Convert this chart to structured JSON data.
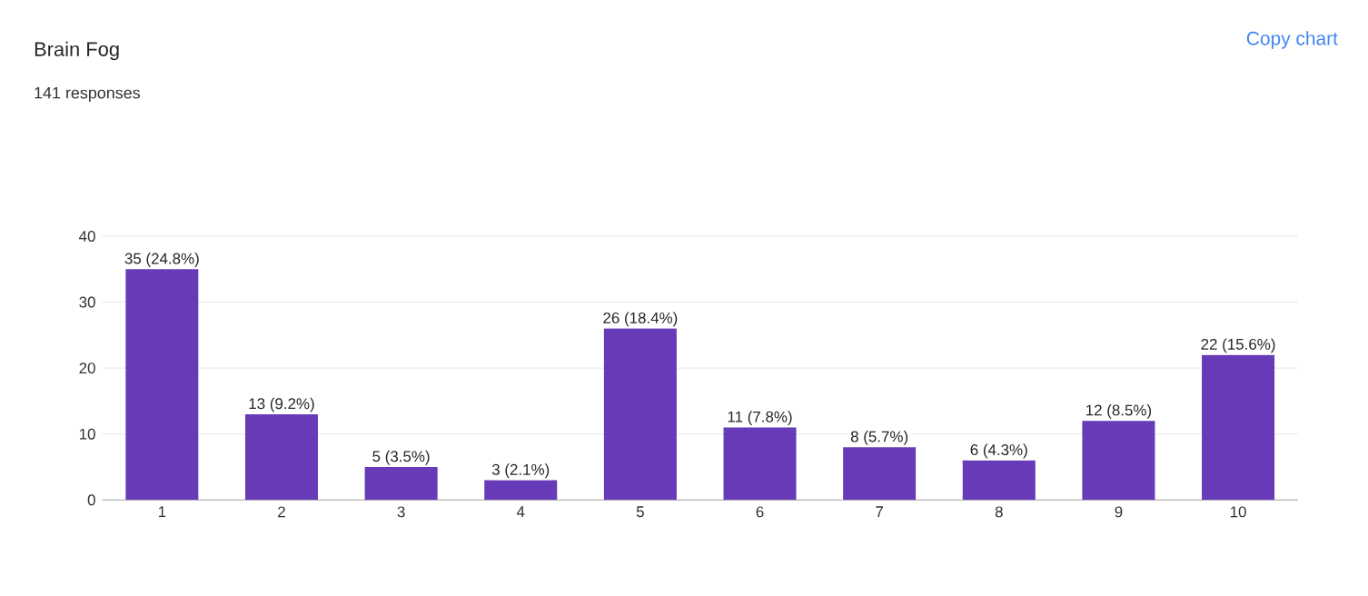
{
  "chart_data": {
    "type": "bar",
    "title": "Brain Fog",
    "subtitle": "141 responses",
    "annotations": [
      "Copy chart"
    ],
    "categories": [
      "1",
      "2",
      "3",
      "4",
      "5",
      "6",
      "7",
      "8",
      "9",
      "10"
    ],
    "values": [
      35,
      13,
      5,
      3,
      26,
      11,
      8,
      6,
      12,
      22
    ],
    "value_labels": [
      "35 (24.8%)",
      "13 (9.2%)",
      "5 (3.5%)",
      "3 (2.1%)",
      "26 (18.4%)",
      "11 (7.8%)",
      "8 (5.7%)",
      "6 (4.3%)",
      "12 (8.5%)",
      "22 (15.6%)"
    ],
    "color": "#673ab7",
    "ylim": [
      0,
      40
    ],
    "yticks": [
      0,
      10,
      20,
      30,
      40
    ],
    "grid": true
  }
}
